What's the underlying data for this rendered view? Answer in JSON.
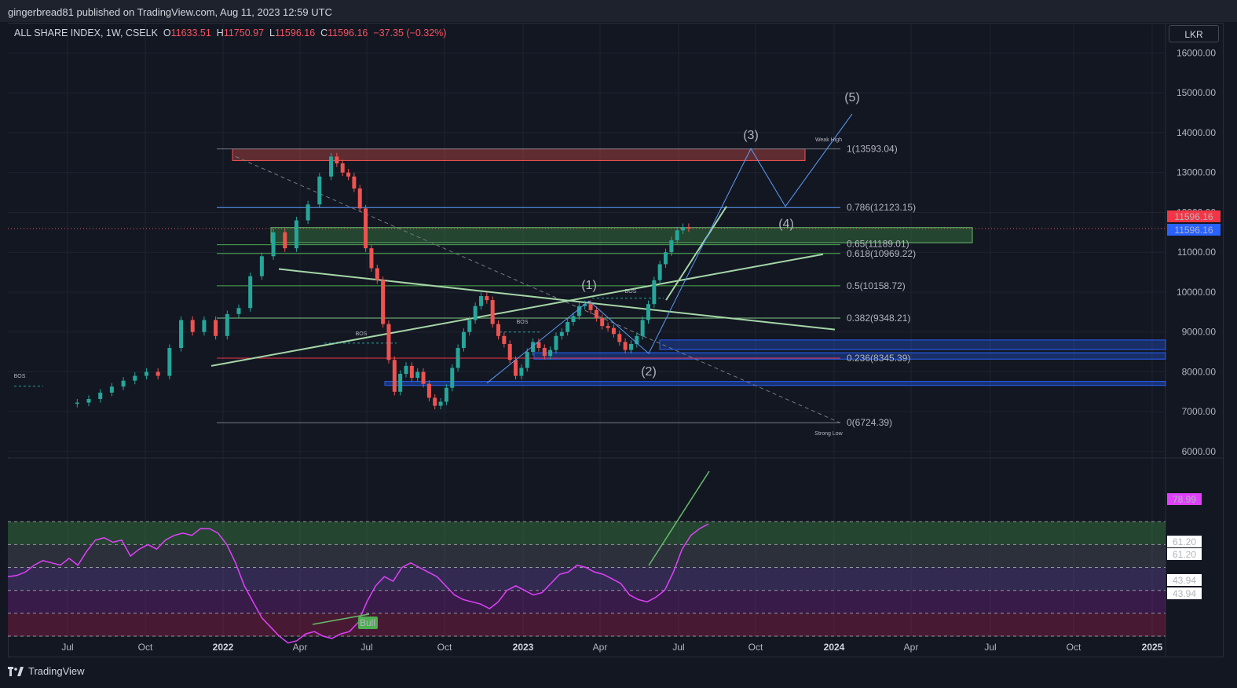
{
  "publisher_line": "gingerbread81 published on TradingView.com, Aug 11, 2023 12:59 UTC",
  "brand": "TradingView",
  "legend": {
    "symbol": "ALL SHARE INDEX, 1W, CSELK",
    "o_label": "O",
    "o": "11633.51",
    "h_label": "H",
    "h": "11750.97",
    "l_label": "L",
    "l": "11596.16",
    "c_label": "C",
    "c": "11596.16",
    "change": "−37.35 (−0.32%)"
  },
  "currency": "LKR",
  "colors": {
    "up": "#26a69a",
    "down": "#ef5350",
    "rsi": "#e040fb",
    "fib": "#5b9cf6",
    "trend": "#90ee90",
    "bg": "#131722"
  },
  "chart_data": {
    "type": "candlestick",
    "symbol": "ALL SHARE INDEX",
    "interval": "1W",
    "exchange": "CSELK",
    "price_axis": {
      "ticks": [
        6000,
        7000,
        8000,
        9000,
        10000,
        11000,
        12000,
        13000,
        14000,
        15000,
        16000
      ],
      "range": [
        5980,
        16200
      ],
      "labels": [
        "6000.00",
        "7000.00",
        "8000.00",
        "9000.00",
        "10000.00",
        "11000.00",
        "12000.00",
        "13000.00",
        "14000.00",
        "15000.00",
        "16000.00"
      ]
    },
    "time_axis": [
      "Jul",
      "Oct",
      "2022",
      "Apr",
      "Jul",
      "Oct",
      "2023",
      "Apr",
      "Jul",
      "Oct",
      "2024",
      "Apr",
      "Jul",
      "Oct",
      "2025"
    ],
    "last_price": {
      "value": "11596.16",
      "labels": [
        "11596.16",
        "11596.16"
      ]
    },
    "close_path": [
      [
        "2021-06-25",
        7200
      ],
      [
        "2021-07-09",
        7230
      ],
      [
        "2021-07-23",
        7320
      ],
      [
        "2021-08-06",
        7480
      ],
      [
        "2021-08-20",
        7630
      ],
      [
        "2021-09-03",
        7780
      ],
      [
        "2021-09-17",
        7900
      ],
      [
        "2021-10-01",
        8000
      ],
      [
        "2021-10-15",
        7900
      ],
      [
        "2021-10-29",
        8600
      ],
      [
        "2021-11-12",
        9300
      ],
      [
        "2021-11-26",
        9000
      ],
      [
        "2021-12-10",
        9300
      ],
      [
        "2021-12-24",
        8900
      ],
      [
        "2022-01-07",
        9450
      ],
      [
        "2022-01-21",
        9600
      ],
      [
        "2022-02-04",
        10400
      ],
      [
        "2022-02-18",
        10900
      ],
      [
        "2022-03-04",
        11500
      ],
      [
        "2022-03-18",
        11100
      ],
      [
        "2022-04-01",
        11800
      ],
      [
        "2022-04-15",
        12200
      ],
      [
        "2022-04-29",
        12900
      ],
      [
        "2022-05-13",
        13400
      ],
      [
        "2022-05-20",
        13230
      ],
      [
        "2022-05-27",
        13000
      ],
      [
        "2022-06-03",
        12900
      ],
      [
        "2022-06-10",
        12600
      ],
      [
        "2022-06-17",
        12100
      ],
      [
        "2022-06-24",
        11100
      ],
      [
        "2022-07-01",
        10600
      ],
      [
        "2022-07-08",
        10300
      ],
      [
        "2022-07-15",
        9200
      ],
      [
        "2022-07-22",
        8300
      ],
      [
        "2022-07-29",
        7500
      ],
      [
        "2022-08-05",
        7950
      ],
      [
        "2022-08-12",
        8150
      ],
      [
        "2022-08-19",
        7850
      ],
      [
        "2022-08-26",
        8000
      ],
      [
        "2022-09-02",
        7700
      ],
      [
        "2022-09-09",
        7350
      ],
      [
        "2022-09-16",
        7150
      ],
      [
        "2022-09-23",
        7250
      ],
      [
        "2022-09-30",
        7600
      ],
      [
        "2022-10-07",
        8100
      ],
      [
        "2022-10-14",
        8600
      ],
      [
        "2022-10-21",
        9000
      ],
      [
        "2022-10-28",
        9300
      ],
      [
        "2022-11-04",
        9650
      ],
      [
        "2022-11-11",
        9900
      ],
      [
        "2022-11-18",
        9800
      ],
      [
        "2022-11-25",
        9200
      ],
      [
        "2022-12-02",
        8900
      ],
      [
        "2022-12-09",
        8700
      ],
      [
        "2022-12-16",
        8300
      ],
      [
        "2022-12-23",
        7900
      ],
      [
        "2022-12-30",
        8100
      ],
      [
        "2023-01-06",
        8500
      ],
      [
        "2023-01-13",
        8750
      ],
      [
        "2023-01-20",
        8600
      ],
      [
        "2023-01-27",
        8400
      ],
      [
        "2023-02-03",
        8550
      ],
      [
        "2023-02-10",
        8900
      ],
      [
        "2023-02-17",
        9000
      ],
      [
        "2023-02-24",
        9250
      ],
      [
        "2023-03-03",
        9400
      ],
      [
        "2023-03-10",
        9650
      ],
      [
        "2023-03-17",
        9700
      ],
      [
        "2023-03-24",
        9550
      ],
      [
        "2023-03-31",
        9350
      ],
      [
        "2023-04-07",
        9150
      ],
      [
        "2023-04-14",
        9100
      ],
      [
        "2023-04-21",
        8950
      ],
      [
        "2023-04-28",
        8750
      ],
      [
        "2023-05-05",
        8550
      ],
      [
        "2023-05-12",
        8700
      ],
      [
        "2023-05-19",
        8900
      ],
      [
        "2023-05-26",
        9300
      ],
      [
        "2023-06-02",
        9700
      ],
      [
        "2023-06-09",
        10300
      ],
      [
        "2023-06-16",
        10700
      ],
      [
        "2023-06-23",
        11000
      ],
      [
        "2023-06-30",
        11300
      ],
      [
        "2023-07-07",
        11550
      ],
      [
        "2023-07-14",
        11633
      ],
      [
        "2023-07-21",
        11596
      ]
    ],
    "fib_levels": [
      {
        "ratio": "1",
        "value": 13593.04,
        "label": "1(13593.04)"
      },
      {
        "ratio": "0.786",
        "value": 12123.15,
        "label": "0.786(12123.15)"
      },
      {
        "ratio": "0.65",
        "value": 11189.01,
        "label": "0.65(11189.01)"
      },
      {
        "ratio": "0.618",
        "value": 10969.22,
        "label": "0.618(10969.22)"
      },
      {
        "ratio": "0.5",
        "value": 10158.72,
        "label": "0.5(10158.72)"
      },
      {
        "ratio": "0.382",
        "value": 9348.21,
        "label": "0.382(9348.21)"
      },
      {
        "ratio": "0.236",
        "value": 8345.39,
        "label": "0.236(8345.39)"
      },
      {
        "ratio": "0",
        "value": 6724.39,
        "label": "0(6724.39)"
      }
    ],
    "wave_labels": [
      "(1)",
      "(2)",
      "(3)",
      "(4)",
      "(5)"
    ],
    "annotations": [
      "Weak High",
      "Strong Low",
      "BOS",
      "BOS",
      "BOS",
      "BOS"
    ],
    "rsi": {
      "value_label": "78.99",
      "levels": [
        "61.20",
        "61.20",
        "43.94",
        "43.94"
      ],
      "signal_label": "Bull",
      "values": [
        56,
        56.5,
        58,
        61,
        63,
        62,
        61,
        64,
        61,
        67,
        72,
        73,
        71,
        72,
        65,
        68,
        70,
        68,
        72,
        74,
        75,
        74,
        77,
        77,
        75,
        70,
        62,
        52,
        45,
        38,
        34,
        30,
        27,
        28,
        31,
        32,
        30,
        29,
        31,
        32,
        36,
        45,
        52,
        56,
        54,
        60,
        62,
        60,
        58,
        56,
        52,
        48,
        46,
        45,
        44,
        42,
        45,
        50,
        52,
        50,
        48,
        49,
        53,
        57,
        58,
        61,
        60,
        58,
        57,
        55,
        53,
        48,
        46,
        45,
        47,
        50,
        58,
        68,
        74,
        77,
        78.99
      ]
    }
  }
}
